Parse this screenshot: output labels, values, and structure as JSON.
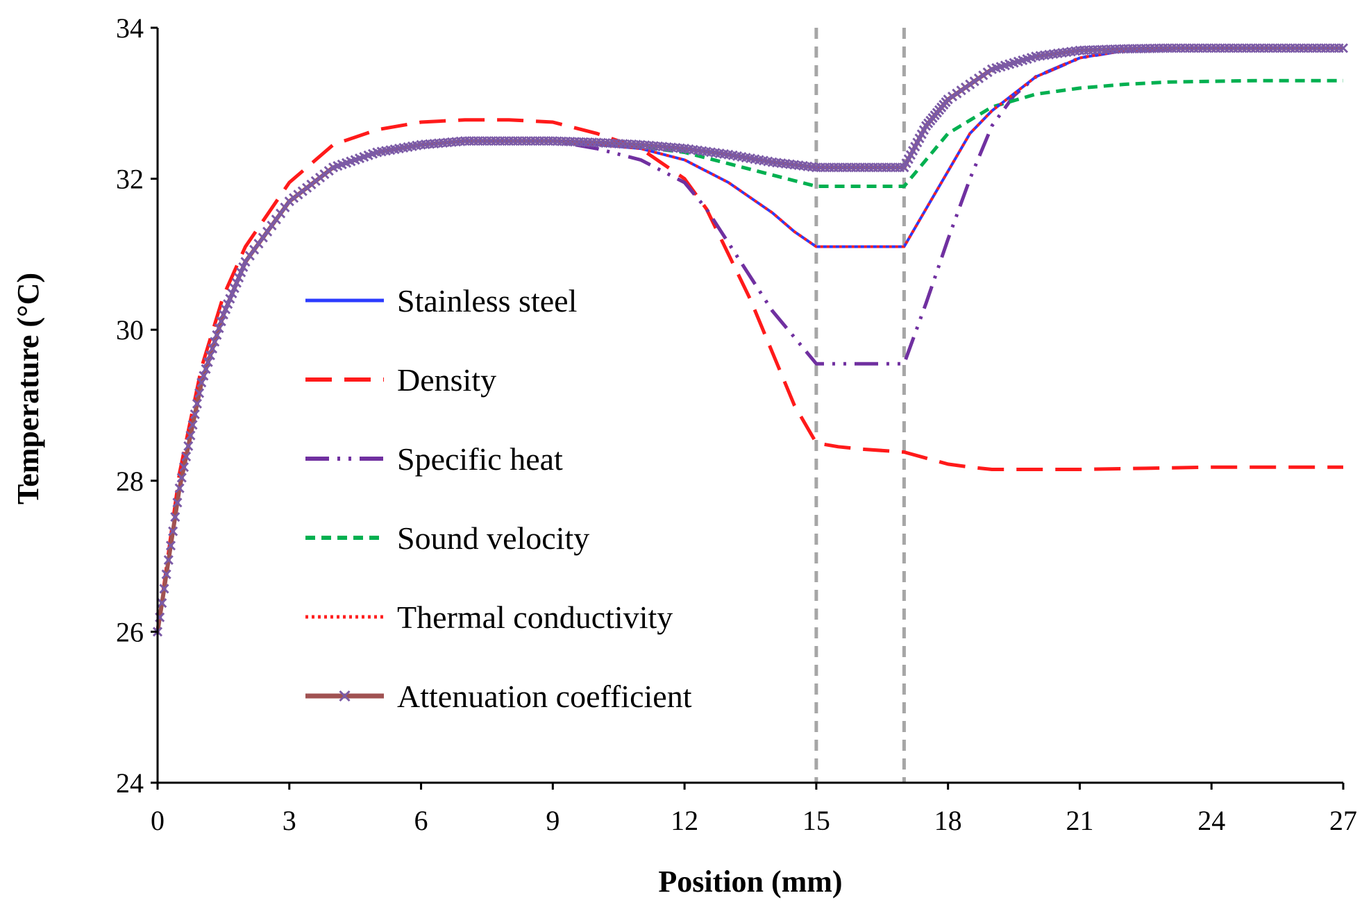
{
  "chart_data": {
    "type": "line",
    "title": "",
    "xlabel": "Position (mm)",
    "ylabel": "Temperature (°C)",
    "xlim": [
      0,
      27
    ],
    "ylim": [
      24,
      34
    ],
    "xticks": [
      0,
      3,
      6,
      9,
      12,
      15,
      18,
      21,
      24,
      27
    ],
    "yticks": [
      24,
      26,
      28,
      30,
      32,
      34
    ],
    "xtick_labels": [
      "0",
      "3",
      "6",
      "9",
      "12",
      "15",
      "18",
      "21",
      "24",
      "27"
    ],
    "ytick_labels": [
      "24",
      "26",
      "28",
      "30",
      "32",
      "34"
    ],
    "vertical_reference_lines": [
      15,
      17
    ],
    "legend_position": "center-left",
    "series": [
      {
        "name": "Stainless steel",
        "color": "#2b3bff",
        "style": "solid",
        "x": [
          0,
          0.5,
          1,
          1.5,
          2,
          3,
          4,
          5,
          6,
          7,
          8,
          9,
          10,
          11,
          12,
          13,
          14,
          14.5,
          15,
          16,
          17,
          17.5,
          18,
          18.5,
          19,
          20,
          21,
          22,
          23,
          24,
          25,
          26,
          27
        ],
        "y": [
          26.0,
          27.9,
          29.3,
          30.2,
          30.9,
          31.7,
          32.15,
          32.35,
          32.45,
          32.5,
          32.5,
          32.5,
          32.45,
          32.4,
          32.25,
          31.95,
          31.55,
          31.3,
          31.1,
          31.1,
          31.1,
          31.6,
          32.1,
          32.6,
          32.9,
          33.35,
          33.6,
          33.7,
          33.72,
          33.73,
          33.73,
          33.73,
          33.73
        ]
      },
      {
        "name": "Density",
        "color": "#ff1a1a",
        "style": "long-dash",
        "x": [
          0,
          0.5,
          1,
          1.5,
          2,
          3,
          4,
          5,
          6,
          7,
          8,
          9,
          10,
          11,
          12,
          12.5,
          13,
          13.5,
          14,
          14.5,
          15,
          15.5,
          16,
          17,
          17.5,
          18,
          18.5,
          19,
          20,
          21,
          22,
          23,
          24,
          25,
          26,
          27
        ],
        "y": [
          26.0,
          28.1,
          29.5,
          30.45,
          31.1,
          31.95,
          32.45,
          32.65,
          32.75,
          32.78,
          32.78,
          32.75,
          32.6,
          32.4,
          32.0,
          31.6,
          31.0,
          30.4,
          29.7,
          29.0,
          28.5,
          28.45,
          28.42,
          28.38,
          28.3,
          28.22,
          28.18,
          28.15,
          28.15,
          28.15,
          28.16,
          28.17,
          28.18,
          28.18,
          28.18,
          28.18
        ]
      },
      {
        "name": "Specific heat",
        "color": "#7030a0",
        "style": "dash-dot-dot",
        "x": [
          0,
          0.5,
          1,
          1.5,
          2,
          3,
          4,
          5,
          6,
          7,
          8,
          9,
          10,
          11,
          12,
          12.5,
          13,
          13.5,
          14,
          14.5,
          15,
          16,
          17,
          17.5,
          18,
          18.5,
          19,
          19.5,
          20,
          21,
          22,
          23,
          24,
          25,
          26,
          27
        ],
        "y": [
          26.0,
          27.9,
          29.3,
          30.2,
          30.9,
          31.7,
          32.15,
          32.35,
          32.45,
          32.5,
          32.5,
          32.5,
          32.4,
          32.25,
          31.95,
          31.6,
          31.15,
          30.7,
          30.25,
          29.9,
          29.55,
          29.55,
          29.55,
          30.35,
          31.2,
          32.0,
          32.7,
          33.1,
          33.35,
          33.6,
          33.7,
          33.72,
          33.73,
          33.73,
          33.73,
          33.73
        ]
      },
      {
        "name": "Sound velocity",
        "color": "#00b050",
        "style": "short-dash",
        "x": [
          0,
          0.5,
          1,
          1.5,
          2,
          3,
          4,
          5,
          6,
          7,
          8,
          9,
          10,
          11,
          12,
          13,
          14,
          15,
          16,
          17,
          17.5,
          18,
          19,
          20,
          21,
          22,
          23,
          24,
          25,
          26,
          27
        ],
        "y": [
          26.0,
          27.9,
          29.3,
          30.2,
          30.9,
          31.7,
          32.15,
          32.35,
          32.45,
          32.5,
          32.5,
          32.5,
          32.45,
          32.42,
          32.35,
          32.2,
          32.05,
          31.9,
          31.9,
          31.9,
          32.25,
          32.6,
          32.95,
          33.12,
          33.2,
          33.25,
          33.28,
          33.29,
          33.3,
          33.3,
          33.3
        ]
      },
      {
        "name": "Thermal conductivity",
        "color": "#ff2020",
        "style": "dotted",
        "x": [
          0,
          0.5,
          1,
          1.5,
          2,
          3,
          4,
          5,
          6,
          7,
          8,
          9,
          10,
          11,
          12,
          13,
          14,
          14.5,
          15,
          16,
          17,
          17.5,
          18,
          18.5,
          19,
          20,
          21,
          22,
          23,
          24,
          25,
          26,
          27
        ],
        "y": [
          26.0,
          27.9,
          29.3,
          30.2,
          30.9,
          31.7,
          32.15,
          32.35,
          32.45,
          32.5,
          32.5,
          32.5,
          32.45,
          32.4,
          32.25,
          31.95,
          31.55,
          31.3,
          31.1,
          31.1,
          31.1,
          31.6,
          32.1,
          32.6,
          32.9,
          33.35,
          33.6,
          33.7,
          33.72,
          33.73,
          33.73,
          33.73,
          33.73
        ]
      },
      {
        "name": "Attenuation coefficient",
        "color": "#a05252",
        "marker_color": "#7b5aa6",
        "style": "solid-with-x-markers",
        "x": [
          0,
          0.5,
          1,
          1.5,
          2,
          3,
          4,
          5,
          6,
          7,
          8,
          9,
          10,
          11,
          12,
          13,
          14,
          15,
          16,
          17,
          17.5,
          18,
          19,
          20,
          21,
          22,
          23,
          24,
          25,
          26,
          27
        ],
        "y": [
          26.0,
          27.9,
          29.3,
          30.2,
          30.9,
          31.7,
          32.15,
          32.35,
          32.45,
          32.5,
          32.5,
          32.5,
          32.48,
          32.45,
          32.4,
          32.32,
          32.22,
          32.15,
          32.15,
          32.15,
          32.7,
          33.05,
          33.45,
          33.62,
          33.7,
          33.72,
          33.73,
          33.73,
          33.73,
          33.73,
          33.73
        ]
      }
    ]
  }
}
